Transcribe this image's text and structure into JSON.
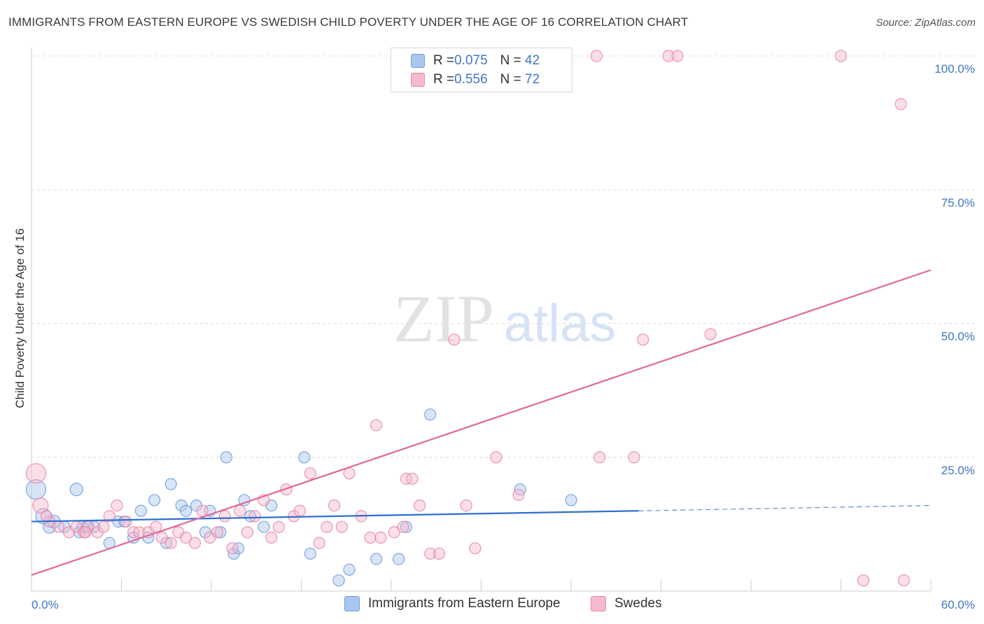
{
  "title": "IMMIGRANTS FROM EASTERN EUROPE VS SWEDISH CHILD POVERTY UNDER THE AGE OF 16 CORRELATION CHART",
  "source": "Source: ZipAtlas.com",
  "watermark": {
    "zip": "ZIP",
    "atlas": "atlas"
  },
  "legend": {
    "rows": [
      {
        "r_label": "R = ",
        "r_value": "0.075",
        "n_label": "N = ",
        "n_value": "42",
        "color": "#a9c6ee",
        "border": "#6f9fe0"
      },
      {
        "r_label": "R = ",
        "r_value": "0.556",
        "n_label": "N = ",
        "n_value": "72",
        "color": "#f7b9cc",
        "border": "#e98aa8"
      }
    ]
  },
  "chart_data": {
    "type": "scatter",
    "title": "IMMIGRANTS FROM EASTERN EUROPE VS SWEDISH CHILD POVERTY UNDER THE AGE OF 16 CORRELATION CHART",
    "xlabel": "",
    "ylabel": "Child Poverty Under the Age of 16",
    "xlim": [
      0,
      60
    ],
    "ylim": [
      0,
      100
    ],
    "x_tick_labels": [
      "0.0%",
      "60.0%"
    ],
    "y_ticks": [
      {
        "value": 100,
        "label": "100.0%"
      },
      {
        "value": 75,
        "label": "75.0%"
      },
      {
        "value": 50,
        "label": "50.0%"
      },
      {
        "value": 25,
        "label": "25.0%"
      }
    ],
    "grid": true,
    "legend_position": "top-center",
    "series": [
      {
        "name": "Immigrants from Eastern Europe",
        "color": "#a9c6ee",
        "stroke": "#6f9fe0",
        "trend": {
          "x0": 0,
          "y0": 13.0,
          "x1": 40.5,
          "y1": 15.0,
          "dash_x1": 60,
          "dash_y1": 16.0,
          "color": "#2f6fd0"
        },
        "points": [
          [
            0.3,
            19,
            14
          ],
          [
            0.8,
            14,
            11
          ],
          [
            1.2,
            12,
            9
          ],
          [
            1.5,
            13,
            9
          ],
          [
            2.2,
            12,
            8
          ],
          [
            3.2,
            11,
            8
          ],
          [
            3.4,
            12,
            8
          ],
          [
            3.7,
            12,
            8
          ],
          [
            4.2,
            12,
            8
          ],
          [
            3.0,
            19,
            9
          ],
          [
            5.2,
            9,
            8
          ],
          [
            5.8,
            13,
            8
          ],
          [
            6.2,
            13,
            8
          ],
          [
            6.8,
            10,
            8
          ],
          [
            7.3,
            15,
            8
          ],
          [
            7.8,
            10,
            8
          ],
          [
            8.2,
            17,
            8
          ],
          [
            9.0,
            9,
            8
          ],
          [
            9.3,
            20,
            8
          ],
          [
            10.0,
            16,
            8
          ],
          [
            10.3,
            15,
            8
          ],
          [
            11.0,
            16,
            8
          ],
          [
            11.6,
            11,
            8
          ],
          [
            11.9,
            15,
            8
          ],
          [
            12.6,
            11,
            8
          ],
          [
            13.0,
            25,
            8
          ],
          [
            13.5,
            7,
            8
          ],
          [
            13.8,
            8,
            8
          ],
          [
            14.2,
            17,
            8
          ],
          [
            14.6,
            14,
            8
          ],
          [
            15.5,
            12,
            8
          ],
          [
            16.0,
            16,
            8
          ],
          [
            18.2,
            25,
            8
          ],
          [
            18.6,
            7,
            8
          ],
          [
            20.5,
            2,
            8
          ],
          [
            21.2,
            4,
            8
          ],
          [
            23.0,
            6,
            8
          ],
          [
            24.5,
            6,
            8
          ],
          [
            25.0,
            12,
            8
          ],
          [
            26.6,
            33,
            8
          ],
          [
            32.6,
            19,
            8
          ],
          [
            36.0,
            17,
            8
          ]
        ]
      },
      {
        "name": "Swedes",
        "color": "#f7b9cc",
        "stroke": "#e98aa8",
        "trend": {
          "x0": 0,
          "y0": 3.0,
          "x1": 60,
          "y1": 60.0,
          "color": "#e0689a"
        },
        "points": [
          [
            0.3,
            22,
            14
          ],
          [
            0.6,
            16,
            11
          ],
          [
            1.2,
            13,
            8
          ],
          [
            1.8,
            12,
            8
          ],
          [
            2.5,
            11,
            8
          ],
          [
            3.0,
            12,
            8
          ],
          [
            3.5,
            11,
            8
          ],
          [
            3.8,
            12,
            8
          ],
          [
            4.4,
            11,
            8
          ],
          [
            4.8,
            12,
            8
          ],
          [
            5.2,
            14,
            8
          ],
          [
            5.7,
            16,
            8
          ],
          [
            6.3,
            13,
            8
          ],
          [
            6.8,
            11,
            8
          ],
          [
            7.2,
            11,
            8
          ],
          [
            7.8,
            11,
            8
          ],
          [
            8.3,
            12,
            8
          ],
          [
            8.7,
            10,
            8
          ],
          [
            9.3,
            9,
            8
          ],
          [
            9.8,
            11,
            8
          ],
          [
            10.3,
            10,
            8
          ],
          [
            10.9,
            9,
            8
          ],
          [
            11.4,
            15,
            8
          ],
          [
            11.9,
            10,
            8
          ],
          [
            12.4,
            11,
            8
          ],
          [
            12.9,
            14,
            8
          ],
          [
            13.4,
            8,
            8
          ],
          [
            13.9,
            15,
            8
          ],
          [
            14.4,
            11,
            8
          ],
          [
            14.9,
            14,
            8
          ],
          [
            15.5,
            17,
            8
          ],
          [
            16.0,
            10,
            8
          ],
          [
            16.5,
            12,
            8
          ],
          [
            17.0,
            19,
            8
          ],
          [
            17.5,
            14,
            8
          ],
          [
            17.9,
            15,
            8
          ],
          [
            18.6,
            22,
            8
          ],
          [
            19.2,
            9,
            8
          ],
          [
            19.7,
            12,
            8
          ],
          [
            20.2,
            16,
            8
          ],
          [
            20.7,
            12,
            8
          ],
          [
            21.2,
            22,
            8
          ],
          [
            22.0,
            14,
            8
          ],
          [
            22.6,
            10,
            8
          ],
          [
            23.0,
            31,
            8
          ],
          [
            23.3,
            10,
            8
          ],
          [
            24.2,
            11,
            8
          ],
          [
            24.8,
            12,
            8
          ],
          [
            25.0,
            21,
            8
          ],
          [
            25.4,
            21,
            8
          ],
          [
            25.9,
            16,
            8
          ],
          [
            26.6,
            7,
            8
          ],
          [
            27.2,
            7,
            8
          ],
          [
            27.7,
            96,
            8
          ],
          [
            28.2,
            47,
            8
          ],
          [
            29.0,
            16,
            8
          ],
          [
            29.6,
            8,
            8
          ],
          [
            31.0,
            25,
            8
          ],
          [
            32.5,
            18,
            8
          ],
          [
            37.7,
            100,
            8
          ],
          [
            37.9,
            25,
            8
          ],
          [
            40.2,
            25,
            8
          ],
          [
            40.8,
            47,
            8
          ],
          [
            42.5,
            100,
            8
          ],
          [
            43.1,
            100,
            8
          ],
          [
            45.3,
            48,
            8
          ],
          [
            54.0,
            100,
            8
          ],
          [
            55.5,
            2,
            8
          ],
          [
            58.0,
            91,
            8
          ],
          [
            58.2,
            2,
            8
          ],
          [
            3.6,
            11,
            8
          ],
          [
            1.0,
            14,
            8
          ]
        ]
      }
    ]
  }
}
